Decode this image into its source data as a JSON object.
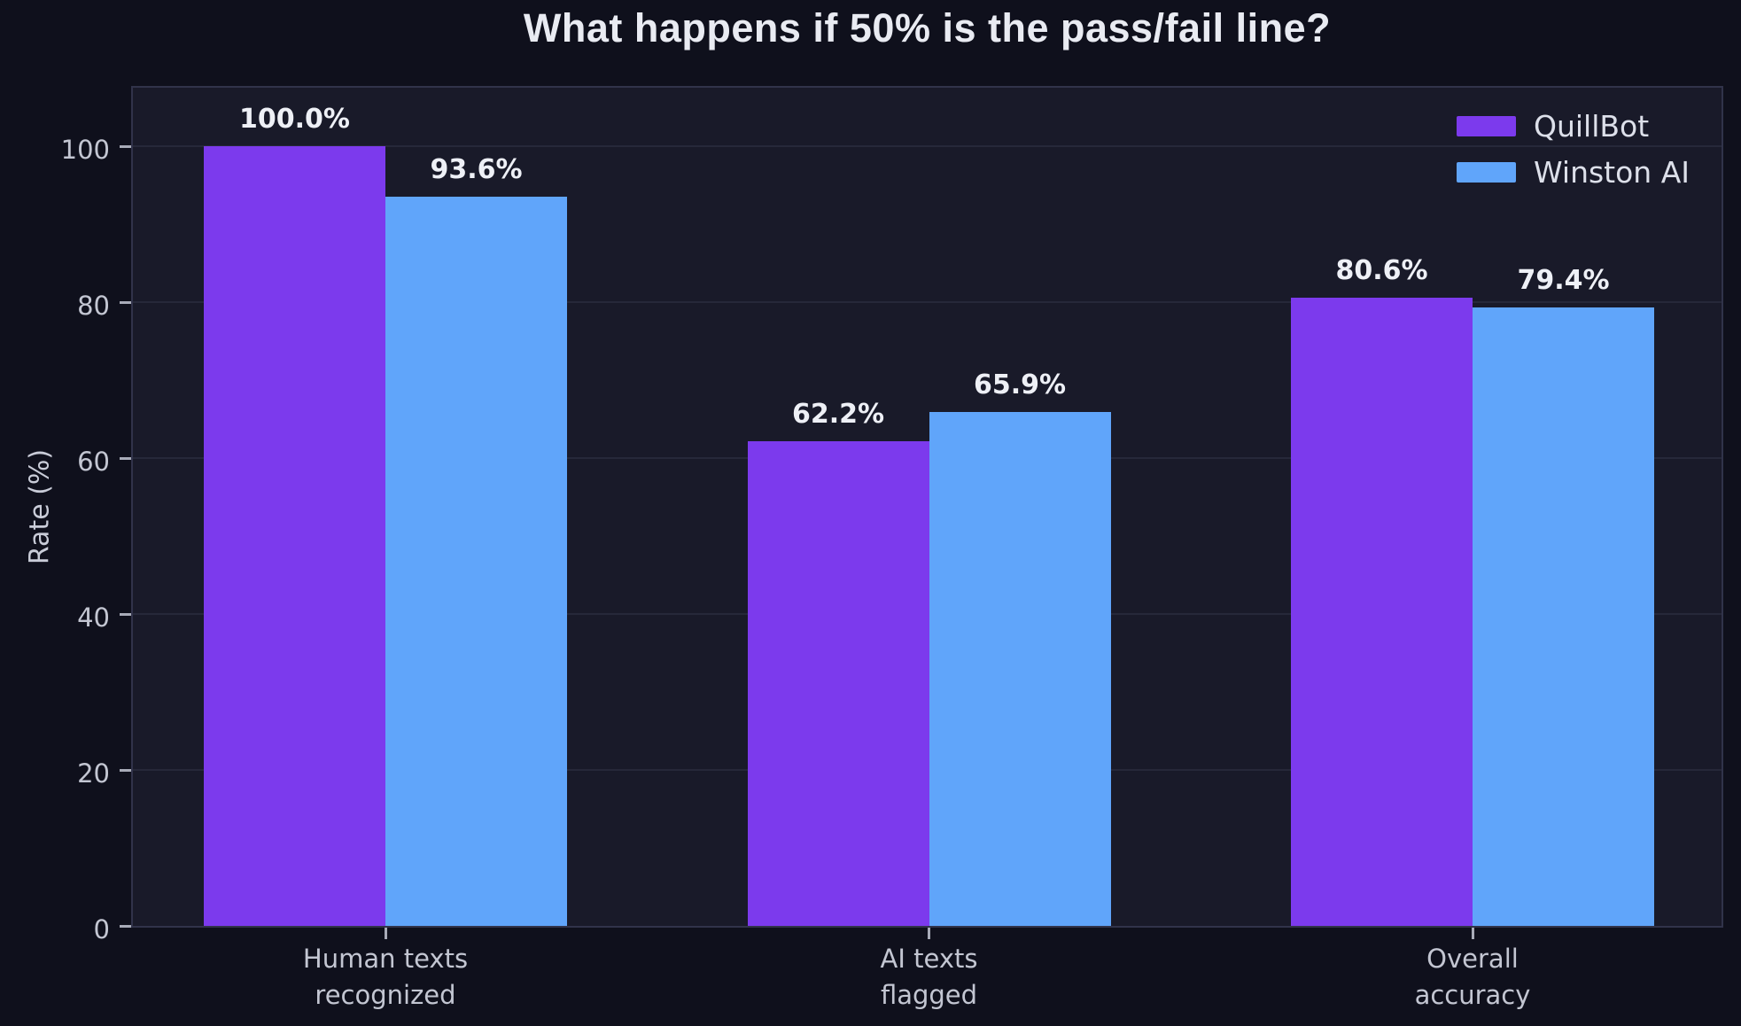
{
  "title": "What happens if 50% is the pass/fail line?",
  "y_axis": {
    "label": "Rate (%)",
    "tick_labels": [
      "0",
      "20",
      "40",
      "60",
      "80",
      "100"
    ]
  },
  "legend": {
    "items": [
      {
        "label": "QuillBot",
        "color": "#7c3aed"
      },
      {
        "label": "Winston AI",
        "color": "#60a5fa"
      }
    ]
  },
  "chart_data": {
    "type": "bar",
    "title": "What happens if 50% is the pass/fail line?",
    "ylabel": "Rate (%)",
    "xlabel": "",
    "categories": [
      [
        "Human texts",
        "recognized"
      ],
      [
        "AI texts",
        "flagged"
      ],
      [
        "Overall",
        "accuracy"
      ]
    ],
    "series": [
      {
        "name": "QuillBot",
        "color": "#7c3aed",
        "values": [
          100.0,
          62.2,
          80.6
        ],
        "value_labels": [
          "100.0%",
          "62.2%",
          "80.6%"
        ]
      },
      {
        "name": "Winston AI",
        "color": "#60a5fa",
        "values": [
          93.6,
          65.9,
          79.4
        ],
        "value_labels": [
          "93.6%",
          "65.9%",
          "79.4%"
        ]
      }
    ],
    "yticks": [
      0,
      20,
      40,
      60,
      80,
      100
    ],
    "ylim": [
      0,
      108
    ],
    "grid": "horizontal",
    "legend_position": "upper-right"
  },
  "colors": {
    "background": "#0f101c",
    "plot_background": "#191a29",
    "plot_border": "#31334a",
    "gridline": "#262839",
    "tick_mark": "#a8abb8",
    "tick_text": "#c3c6d2",
    "title_text": "#e9ebf2",
    "value_label_text": "#eef0f6"
  }
}
